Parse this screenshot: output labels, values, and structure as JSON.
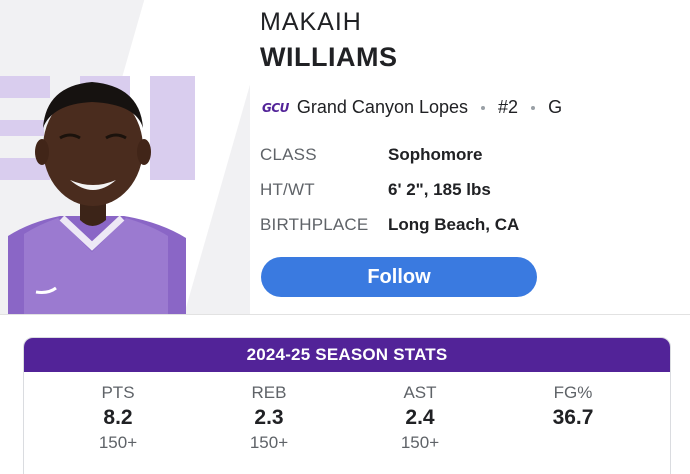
{
  "player": {
    "first_name": "MAKAIH",
    "last_name": "WILLIAMS",
    "team_logo_text": "GCU",
    "team": "Grand Canyon Lopes",
    "number": "#2",
    "position": "G"
  },
  "info": [
    {
      "label": "CLASS",
      "value": "Sophomore"
    },
    {
      "label": "HT/WT",
      "value": "6' 2\", 185 lbs"
    },
    {
      "label": "BIRTHPLACE",
      "value": "Long Beach, CA"
    }
  ],
  "follow_label": "Follow",
  "season_stats": {
    "title": "2024-25 SEASON STATS",
    "stats": [
      {
        "label": "PTS",
        "value": "8.2",
        "rank": "150+"
      },
      {
        "label": "REB",
        "value": "2.3",
        "rank": "150+"
      },
      {
        "label": "AST",
        "value": "2.4",
        "rank": "150+"
      },
      {
        "label": "FG%",
        "value": "36.7",
        "rank": ""
      }
    ]
  },
  "colors": {
    "team_purple": "#522398",
    "follow_blue": "#3a7ae0",
    "muted_text": "#5f6368"
  }
}
